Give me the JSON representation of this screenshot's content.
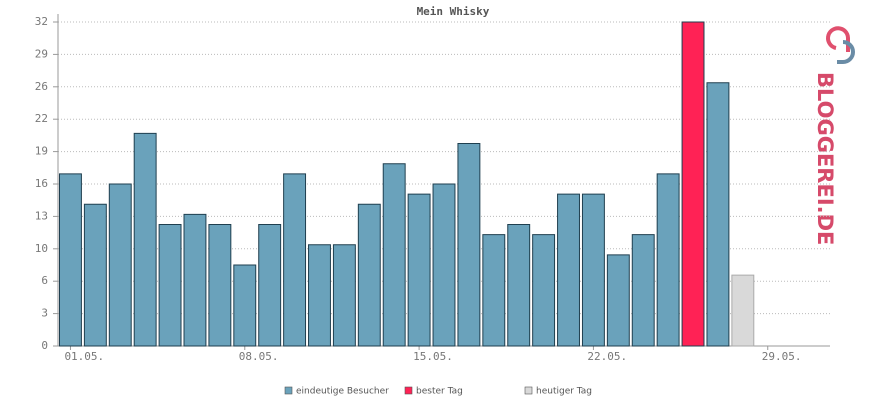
{
  "chart_data": {
    "type": "bar",
    "title": "Mein Whisky",
    "logo": "BLOGGEREI.DE",
    "categories": [
      "01.05.",
      null,
      null,
      null,
      null,
      null,
      null,
      "08.05.",
      null,
      null,
      null,
      null,
      null,
      null,
      "15.05.",
      null,
      null,
      null,
      null,
      null,
      null,
      "22.05.",
      null,
      null,
      null,
      null,
      null,
      null,
      "29.05.",
      null,
      null
    ],
    "series": [
      {
        "name": "eindeutige Besucher",
        "color": "#6aa2bb",
        "values": [
          17,
          14,
          16,
          21,
          12,
          13,
          12,
          8,
          12,
          17,
          10,
          10,
          14,
          18,
          15,
          16,
          20,
          11,
          12,
          11,
          15,
          15,
          9,
          11,
          17,
          null,
          26,
          null,
          null,
          null,
          null
        ]
      },
      {
        "name": "bester Tag",
        "color": "#ff2255",
        "values": [
          null,
          null,
          null,
          null,
          null,
          null,
          null,
          null,
          null,
          null,
          null,
          null,
          null,
          null,
          null,
          null,
          null,
          null,
          null,
          null,
          null,
          null,
          null,
          null,
          null,
          32,
          null,
          null,
          null,
          null,
          null
        ]
      },
      {
        "name": "heutiger Tag",
        "color": "#d9d9d9",
        "values": [
          null,
          null,
          null,
          null,
          null,
          null,
          null,
          null,
          null,
          null,
          null,
          null,
          null,
          null,
          null,
          null,
          null,
          null,
          null,
          null,
          null,
          null,
          null,
          null,
          null,
          null,
          null,
          7,
          null,
          null,
          null
        ]
      }
    ],
    "ylim": [
      0,
      32
    ],
    "yticks": [
      0,
      {
        "value": 3.2,
        "label": "3"
      },
      {
        "value": 6.4,
        "label": "6"
      },
      {
        "value": 9.6,
        "label": "10"
      },
      {
        "value": 12.8,
        "label": "13"
      },
      16,
      {
        "value": 19.2,
        "label": "19"
      },
      {
        "value": 22.4,
        "label": "22"
      },
      {
        "value": 25.6,
        "label": "26"
      },
      {
        "value": 28.8,
        "label": "29"
      },
      32
    ],
    "grid": true
  }
}
